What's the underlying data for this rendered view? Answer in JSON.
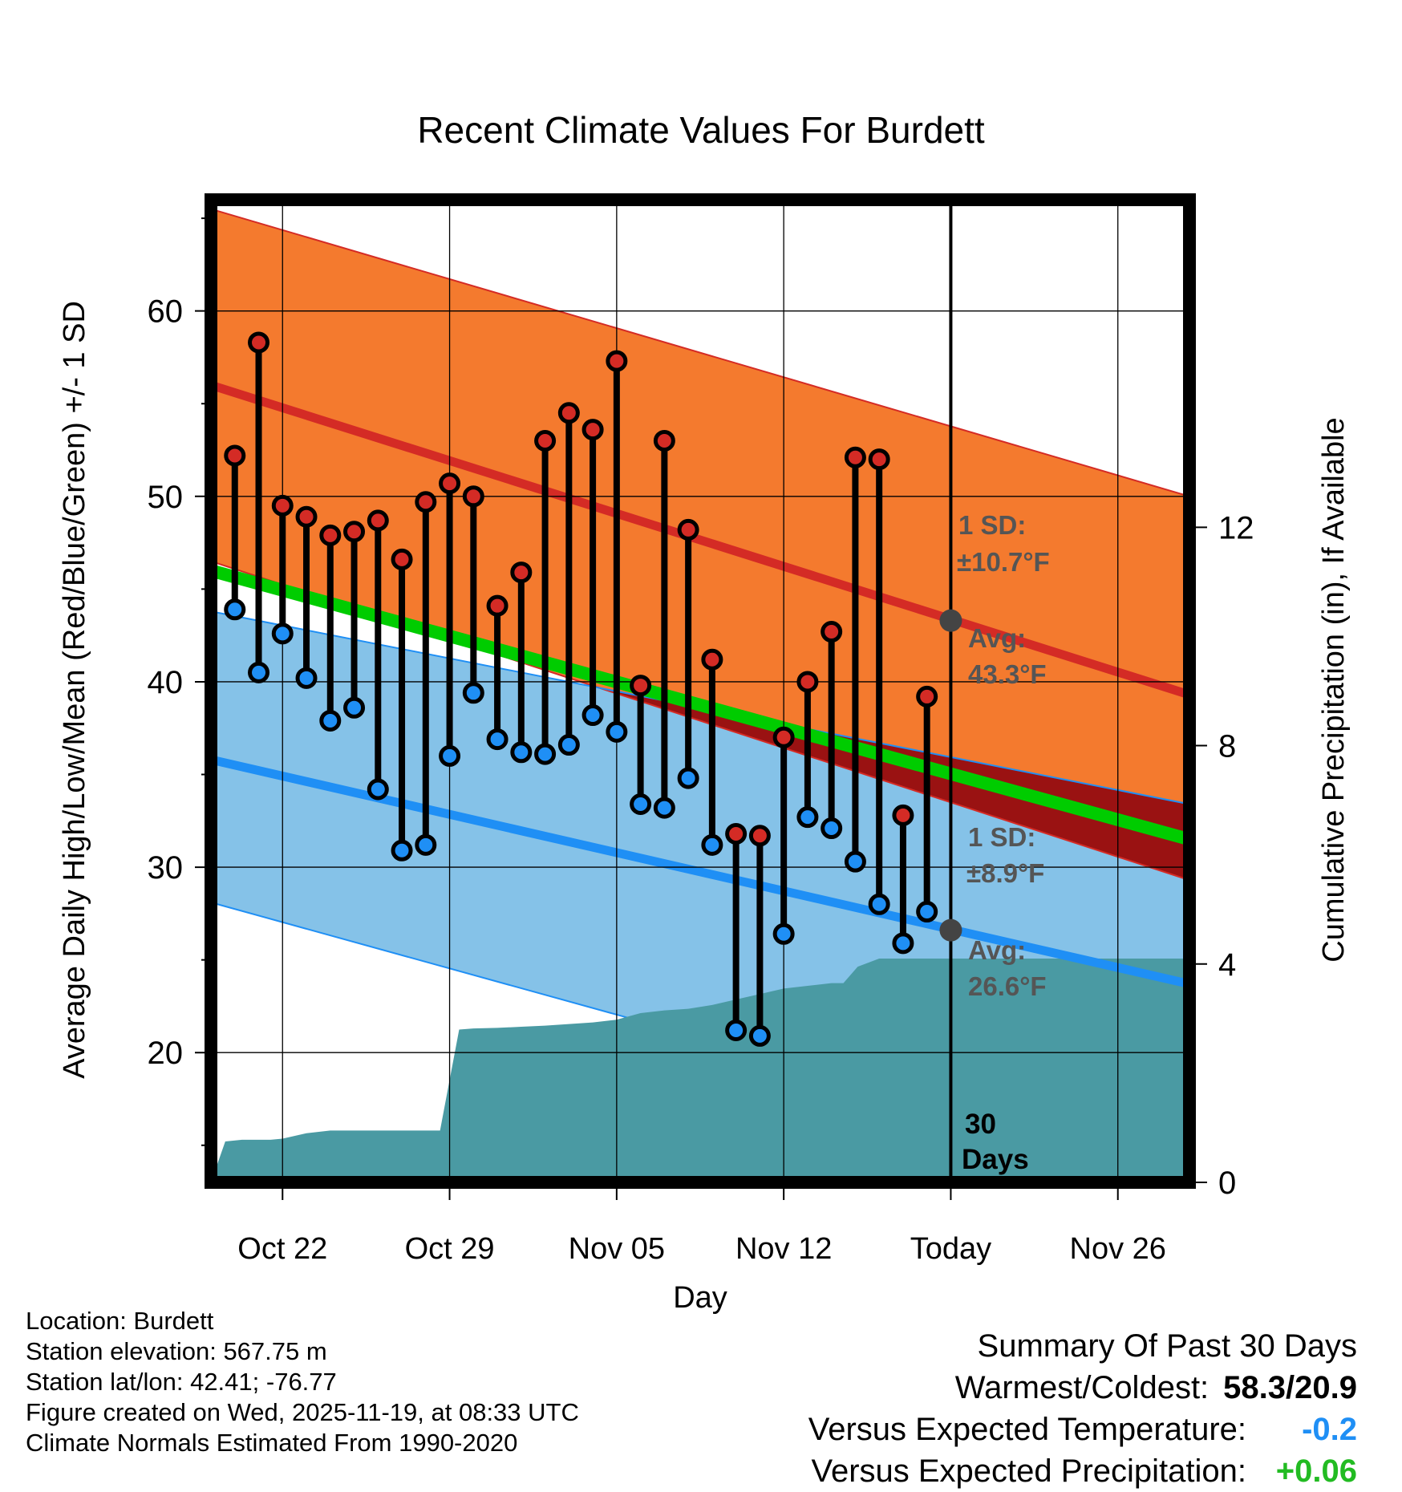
{
  "chart_data": {
    "type": "line",
    "title": "Recent Climate Values For Burdett",
    "xlabel": "Day",
    "ylabel_left": "Average Daily High/Low/Mean (Red/Blue/Green) +/- 1 SD",
    "ylabel_right": "Cumulative Precipitation (in), If Available",
    "x_ticks": [
      {
        "day": 3,
        "label": "Oct 22"
      },
      {
        "day": 10,
        "label": "Oct 29"
      },
      {
        "day": 17,
        "label": "Nov 05"
      },
      {
        "day": 24,
        "label": "Nov 12"
      },
      {
        "day": 31,
        "label": "Today"
      },
      {
        "day": 38,
        "label": "Nov 26"
      }
    ],
    "x_range_days": [
      0,
      41
    ],
    "y_left_range": [
      13,
      66
    ],
    "y_left_ticks": [
      20,
      30,
      40,
      50,
      60
    ],
    "y_right_range": [
      0,
      18
    ],
    "y_right_ticks": [
      0,
      4,
      8,
      12
    ],
    "normal_high_avg": {
      "start": 56.0,
      "end": 39.3
    },
    "normal_high_sd_upper": {
      "start": 65.5,
      "end": 50.0
    },
    "normal_high_sd_lower": {
      "start": 46.5,
      "end": 29.3
    },
    "normal_low_avg": {
      "start": 35.8,
      "end": 23.7
    },
    "normal_low_sd_upper": {
      "start": 43.8,
      "end": 33.4
    },
    "normal_low_sd_lower": {
      "start": 28.1,
      "end": 13.5
    },
    "normal_mean_avg": {
      "start": 46.0,
      "end": 31.5
    },
    "daily_days": [
      1,
      2,
      3,
      4,
      5,
      6,
      7,
      8,
      9,
      10,
      11,
      12,
      13,
      14,
      15,
      16,
      17,
      18,
      19,
      20,
      21,
      22,
      23,
      24,
      25,
      26,
      27,
      28,
      29,
      30
    ],
    "daily_high": [
      52.2,
      58.3,
      49.5,
      48.9,
      47.9,
      48.1,
      48.7,
      46.6,
      49.7,
      50.7,
      50.0,
      44.1,
      45.9,
      53.0,
      54.5,
      53.6,
      57.3,
      39.8,
      53.0,
      48.2,
      41.2,
      31.8,
      31.7,
      37.0,
      40.0,
      42.7,
      52.1,
      52.0,
      32.8,
      39.2
    ],
    "daily_low": [
      43.9,
      40.5,
      42.6,
      40.2,
      37.9,
      38.6,
      34.2,
      30.9,
      31.2,
      36.0,
      39.4,
      36.9,
      36.2,
      36.1,
      36.6,
      38.2,
      37.3,
      33.4,
      33.2,
      34.8,
      31.2,
      21.2,
      20.9,
      26.4,
      32.7,
      32.1,
      30.3,
      28.0,
      25.9,
      27.6
    ],
    "precip_cumulative": {
      "days": [
        0,
        0.6,
        1.3,
        2.5,
        3,
        4,
        5,
        6,
        7,
        8,
        9,
        9.6,
        10.4,
        11,
        12,
        13,
        14,
        15,
        16,
        17,
        18,
        19,
        20,
        21,
        22,
        23,
        24,
        25,
        26,
        26.5,
        27.1,
        28,
        29,
        30,
        31,
        32,
        33,
        34,
        35,
        36,
        37,
        38,
        39,
        40,
        41
      ],
      "values": [
        0,
        0.75,
        0.78,
        0.78,
        0.8,
        0.9,
        0.95,
        0.95,
        0.95,
        0.95,
        0.95,
        0.95,
        2.8,
        2.82,
        2.83,
        2.85,
        2.87,
        2.9,
        2.93,
        2.98,
        3.1,
        3.15,
        3.18,
        3.25,
        3.35,
        3.45,
        3.55,
        3.6,
        3.65,
        3.65,
        3.95,
        4.1,
        4.1,
        4.1,
        4.1,
        4.1,
        4.1,
        4.1,
        4.1,
        4.1,
        4.1,
        4.1,
        4.1,
        4.1,
        4.1
      ]
    },
    "today_day": 31,
    "today_label_line1": "30",
    "today_label_line2": "Days",
    "high_sd_label_line1": "1 SD:",
    "high_sd_label_line2": "±10.7°F",
    "high_avg_label_line1": "Avg:",
    "high_avg_label_line2": "43.3°F",
    "low_sd_label_line1": "1 SD:",
    "low_sd_label_line2": "±8.9°F",
    "low_avg_label_line1": "Avg:",
    "low_avg_label_line2": "26.6°F",
    "today_high_avg": 43.3,
    "today_low_avg": 26.6,
    "colors": {
      "high_band": "#f47a2e",
      "high_line": "#d42b25",
      "low_band": "#85c2e8",
      "low_line": "#1f8ff5",
      "mean_line": "#00cc00",
      "overlap": "#9a1212",
      "precip": "#4a9aa3",
      "high_dot": "#d42b25",
      "low_dot": "#1f8ff5",
      "annotation": "#555555"
    }
  },
  "info": {
    "location": "Location: Burdett",
    "elevation": "Station elevation: 567.75 m",
    "latlon": "Station lat/lon: 42.41; -76.77",
    "created": "Figure created on Wed, 2025-11-19, at 08:33 UTC",
    "normals": "Climate Normals Estimated From 1990-2020"
  },
  "summary": {
    "heading": "Summary Of Past 30 Days",
    "warmest_coldest_label": "Warmest/Coldest:",
    "warmest_coldest_value": "58.3/20.9",
    "temp_label": "Versus Expected Temperature:",
    "temp_value": "-0.2",
    "temp_color": "#1f8ff5",
    "precip_label": "Versus Expected Precipitation:",
    "precip_value": "+0.06",
    "precip_color": "#22bb22"
  }
}
